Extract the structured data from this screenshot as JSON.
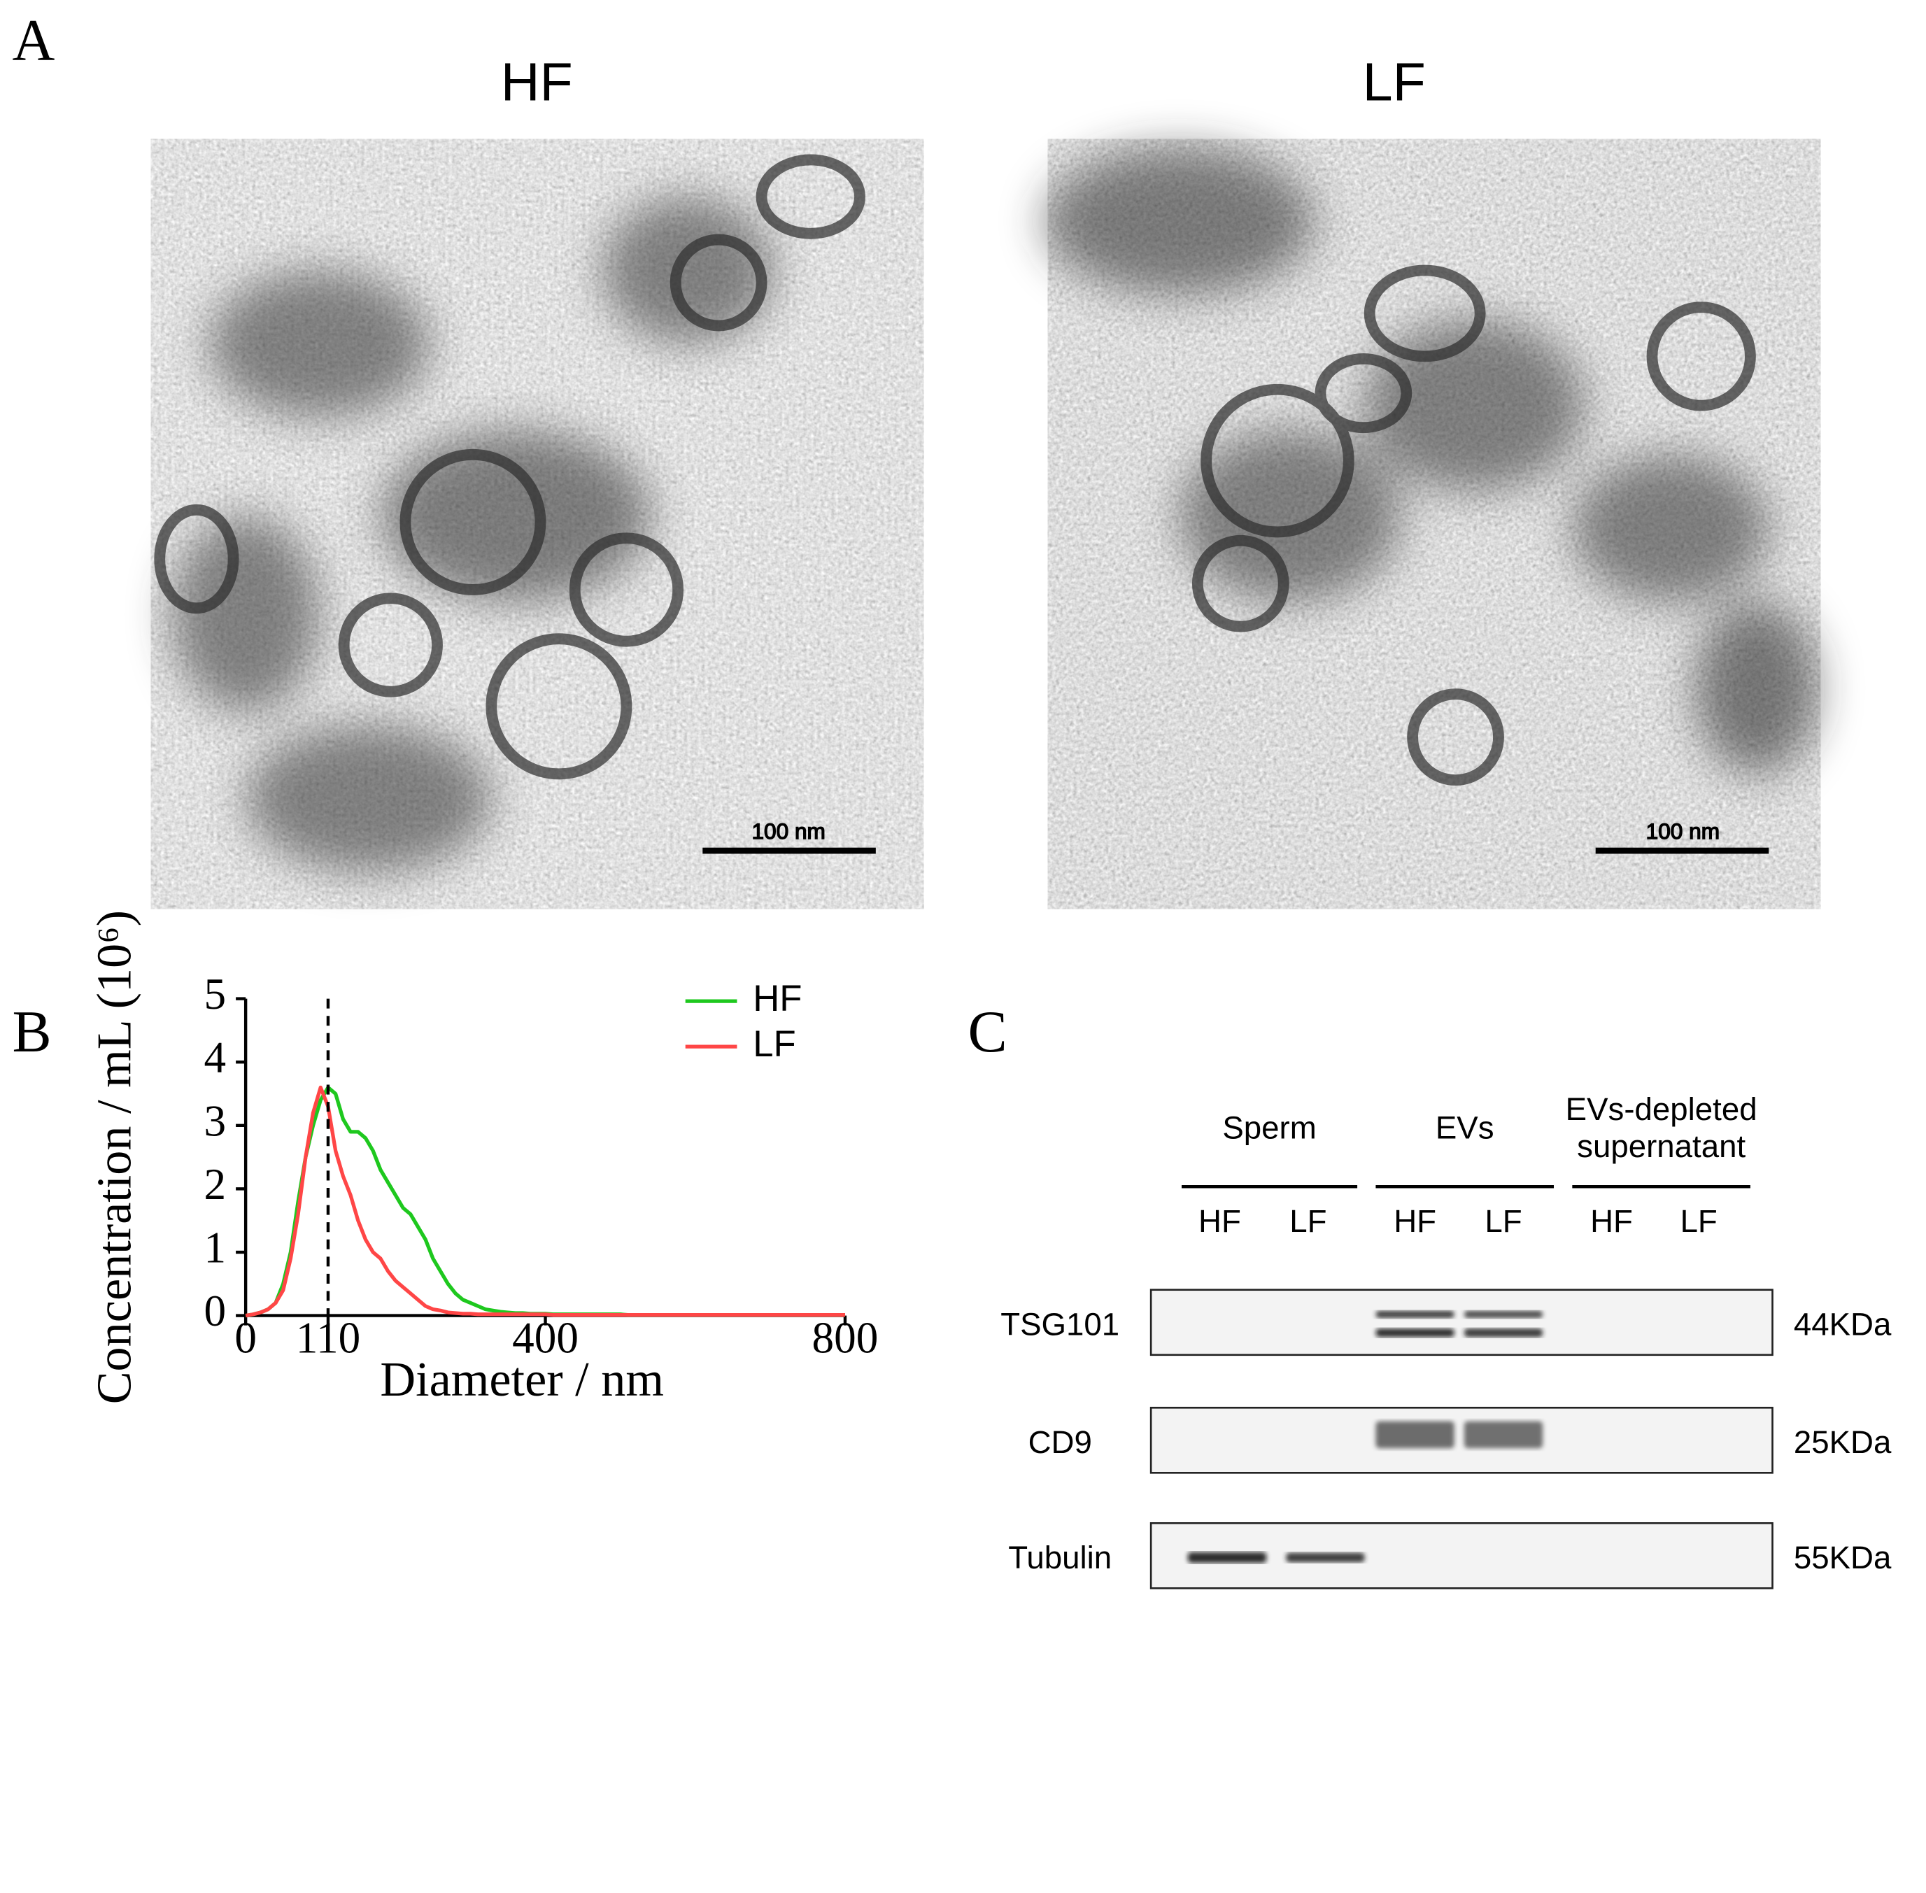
{
  "panels": {
    "A": {
      "letter": "A",
      "images": [
        {
          "title": "HF",
          "scale_bar": "100 nm"
        },
        {
          "title": "LF",
          "scale_bar": "100 nm"
        }
      ]
    },
    "C": {
      "letter": "C",
      "groups": [
        [
          "Sperm"
        ],
        [
          "EVs"
        ],
        [
          "EVs-depleted",
          "supernatant"
        ]
      ],
      "lanes": [
        "HF",
        "LF",
        "HF",
        "LF",
        "HF",
        "LF"
      ],
      "rows": [
        {
          "protein": "TSG101",
          "size": "44KDa"
        },
        {
          "protein": "CD9",
          "size": "25KDa"
        },
        {
          "protein": "Tubulin",
          "size": "55KDa"
        }
      ]
    }
  },
  "chart_data": {
    "type": "line",
    "panel_letter": "B",
    "x_label": "Diameter / nm",
    "y_label": "Concentration / mL (10⁶)",
    "x": [
      0,
      10,
      20,
      30,
      40,
      50,
      60,
      70,
      80,
      90,
      100,
      110,
      120,
      130,
      140,
      150,
      160,
      170,
      180,
      190,
      200,
      210,
      220,
      230,
      240,
      250,
      260,
      270,
      280,
      290,
      300,
      310,
      320,
      330,
      340,
      350,
      360,
      370,
      380,
      390,
      400,
      410,
      420,
      430,
      440,
      450,
      460,
      470,
      480,
      490,
      500,
      510,
      520,
      530,
      540,
      550,
      560,
      570,
      580,
      590,
      600,
      610,
      620,
      630,
      640,
      650,
      660,
      670,
      680,
      690,
      700,
      710,
      720,
      730,
      740,
      750,
      760,
      770,
      780,
      790,
      800
    ],
    "series": [
      {
        "name": "HF",
        "color": "#1ec81e",
        "values": [
          0,
          0.02,
          0.05,
          0.1,
          0.2,
          0.5,
          1.0,
          1.8,
          2.5,
          3.0,
          3.4,
          3.6,
          3.5,
          3.1,
          2.9,
          2.9,
          2.8,
          2.6,
          2.3,
          2.1,
          1.9,
          1.7,
          1.6,
          1.4,
          1.2,
          0.9,
          0.7,
          0.5,
          0.35,
          0.25,
          0.2,
          0.15,
          0.1,
          0.08,
          0.06,
          0.05,
          0.04,
          0.04,
          0.03,
          0.03,
          0.03,
          0.02,
          0.02,
          0.02,
          0.02,
          0.02,
          0.02,
          0.02,
          0.02,
          0.02,
          0.02,
          0.01,
          0.01,
          0.01,
          0.01,
          0.01,
          0.01,
          0.01,
          0.01,
          0.01,
          0.01,
          0.01,
          0.01,
          0.01,
          0.01,
          0.01,
          0.01,
          0.01,
          0.01,
          0.01,
          0.01,
          0.01,
          0.01,
          0.01,
          0.01,
          0.01,
          0.01,
          0.01,
          0.01,
          0.01,
          0.01
        ]
      },
      {
        "name": "LF",
        "color": "#ff4646",
        "values": [
          0,
          0.02,
          0.05,
          0.1,
          0.2,
          0.4,
          0.9,
          1.6,
          2.5,
          3.2,
          3.6,
          3.3,
          2.6,
          2.2,
          1.9,
          1.5,
          1.2,
          1.0,
          0.9,
          0.7,
          0.55,
          0.45,
          0.35,
          0.25,
          0.15,
          0.1,
          0.08,
          0.05,
          0.04,
          0.03,
          0.03,
          0.02,
          0.02,
          0.02,
          0.02,
          0.02,
          0.02,
          0.02,
          0.02,
          0.02,
          0.02,
          0.01,
          0.01,
          0.01,
          0.01,
          0.01,
          0.01,
          0.01,
          0.01,
          0.01,
          0.01,
          0.01,
          0.01,
          0.01,
          0.01,
          0.01,
          0.01,
          0.01,
          0.01,
          0.01,
          0.01,
          0.01,
          0.01,
          0.01,
          0.01,
          0.01,
          0.01,
          0.01,
          0.01,
          0.01,
          0.01,
          0.01,
          0.01,
          0.01,
          0.01,
          0.01,
          0.01,
          0.01,
          0.01,
          0.01,
          0.01
        ]
      }
    ],
    "reference_x": 110,
    "xlim": [
      0,
      800
    ],
    "xticks": [
      0,
      110,
      400,
      800
    ],
    "ylim": [
      0,
      5
    ],
    "yticks": [
      0,
      1,
      2,
      3,
      4,
      5
    ],
    "legend": "upper right"
  }
}
